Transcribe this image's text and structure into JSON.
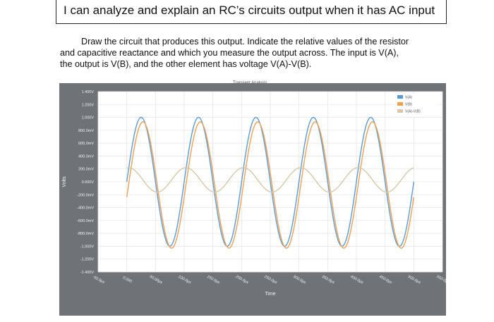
{
  "objective": {
    "text": "I can analyze and explain an RC’s circuits output when it has AC input"
  },
  "prompt": {
    "line1": "Draw the circuit that produces this output. Indicate the relative values of the resistor",
    "line2": "and capacitive reactance and which you measure the output across. The input is V(A),",
    "line3": "the output is V(B), and the other element has voltage V(A)-V(B)."
  },
  "chart_data": {
    "type": "line",
    "title": "Transient Analysis",
    "xlabel": "Time",
    "ylabel": "Volts",
    "x_ticks": [
      "-50.0µs",
      "0.000",
      "50.00µs",
      "100.0µs",
      "150.0µs",
      "200.0µs",
      "250.0µs",
      "300.0µs",
      "350.0µs",
      "400.0µs",
      "450.0µs",
      "500.0µs",
      "550.0µs"
    ],
    "y_ticks": [
      "1.400V",
      "1.200V",
      "1.000V",
      "800.0mV",
      "600.0mV",
      "400.0mV",
      "200.0mV",
      "0.000V",
      "-200.0mV",
      "-400.0mV",
      "-600.0mV",
      "-800.0mV",
      "-1.000V",
      "-1.200V",
      "-1.400V"
    ],
    "xlim": [
      -50,
      550
    ],
    "ylim": [
      -1.4,
      1.4
    ],
    "x_unit": "µs",
    "period_us": 100,
    "time_range": [
      0,
      500
    ],
    "grid": true,
    "legend_position": "top-right",
    "series": [
      {
        "name": "V(A)",
        "color": "#5b9bd5",
        "amplitude": 1.0,
        "phase_deg": 0,
        "offset": 0
      },
      {
        "name": "V(B)",
        "color": "#f0a050",
        "amplitude": 0.98,
        "phase_deg": -11,
        "offset": -0.05
      },
      {
        "name": "V(A)-V(B)",
        "color": "#d8c8a8",
        "amplitude": 0.19,
        "phase_deg": 79,
        "offset": 0.03
      }
    ]
  }
}
